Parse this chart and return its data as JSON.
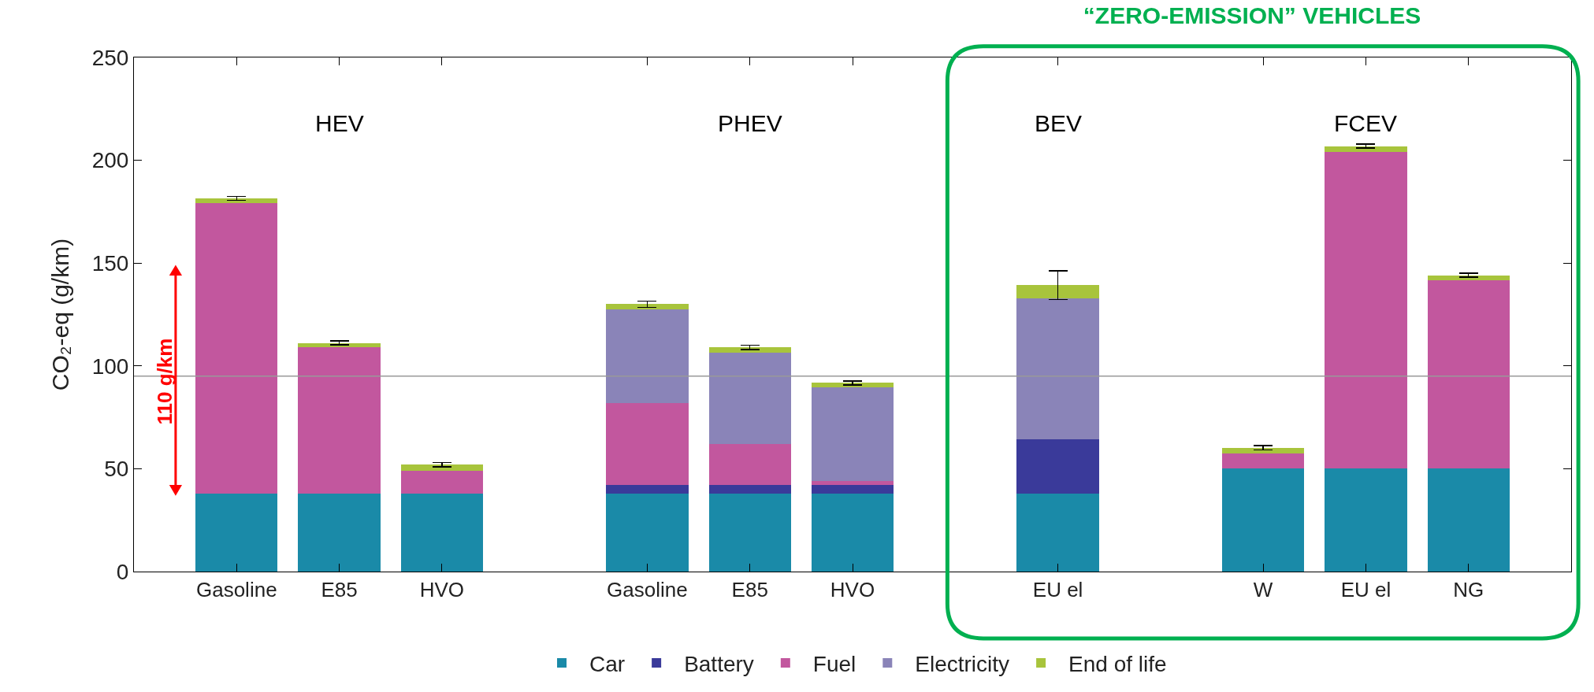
{
  "chart_data": {
    "type": "bar",
    "stacked": true,
    "title": "“ZERO-EMISSION” VEHICLES",
    "ylabel": "CO₂-eq (g/km)",
    "categories": [
      "Gasoline",
      "E85",
      "HVO",
      null,
      "Gasoline",
      "E85",
      "HVO",
      null,
      "EU el",
      null,
      "W",
      "EU el",
      "NG"
    ],
    "series": [
      {
        "name": "Car",
        "color": "#1a8aa8",
        "values": [
          38,
          38,
          38,
          null,
          38,
          38,
          38,
          null,
          38,
          null,
          50,
          50,
          50
        ]
      },
      {
        "name": "Battery",
        "color": "#3a3a9a",
        "values": [
          null,
          null,
          null,
          null,
          4,
          4,
          4,
          null,
          26.4,
          null,
          null,
          null,
          null
        ]
      },
      {
        "name": "Fuel",
        "color": "#c2579e",
        "values": [
          141,
          71,
          11,
          null,
          40,
          20,
          2,
          null,
          null,
          null,
          7.5,
          154,
          91.7
        ]
      },
      {
        "name": "Electricity",
        "color": "#8a84b8",
        "values": [
          null,
          null,
          null,
          null,
          45.5,
          44.5,
          45.5,
          null,
          68.3,
          null,
          null,
          null,
          null
        ]
      },
      {
        "name": "End of life",
        "color": "#a8c43c",
        "values": [
          2.5,
          2.2,
          3,
          null,
          2.5,
          2.5,
          2.2,
          null,
          6.6,
          null,
          2.7,
          2.9,
          2.4
        ],
        "errors": [
          1,
          1,
          1,
          null,
          1.5,
          1,
          1,
          null,
          7,
          null,
          1,
          1,
          1
        ]
      }
    ],
    "ylim": [
      0,
      250
    ],
    "yticks": [
      0,
      50,
      100,
      150,
      200,
      250
    ],
    "ref_lines": [
      {
        "axis": "y",
        "value": 95,
        "color": "#999999"
      }
    ],
    "annotations": [
      "HEV",
      "PHEV",
      "BEV",
      "FCEV",
      "110 g/km"
    ],
    "legend": "bottom"
  }
}
